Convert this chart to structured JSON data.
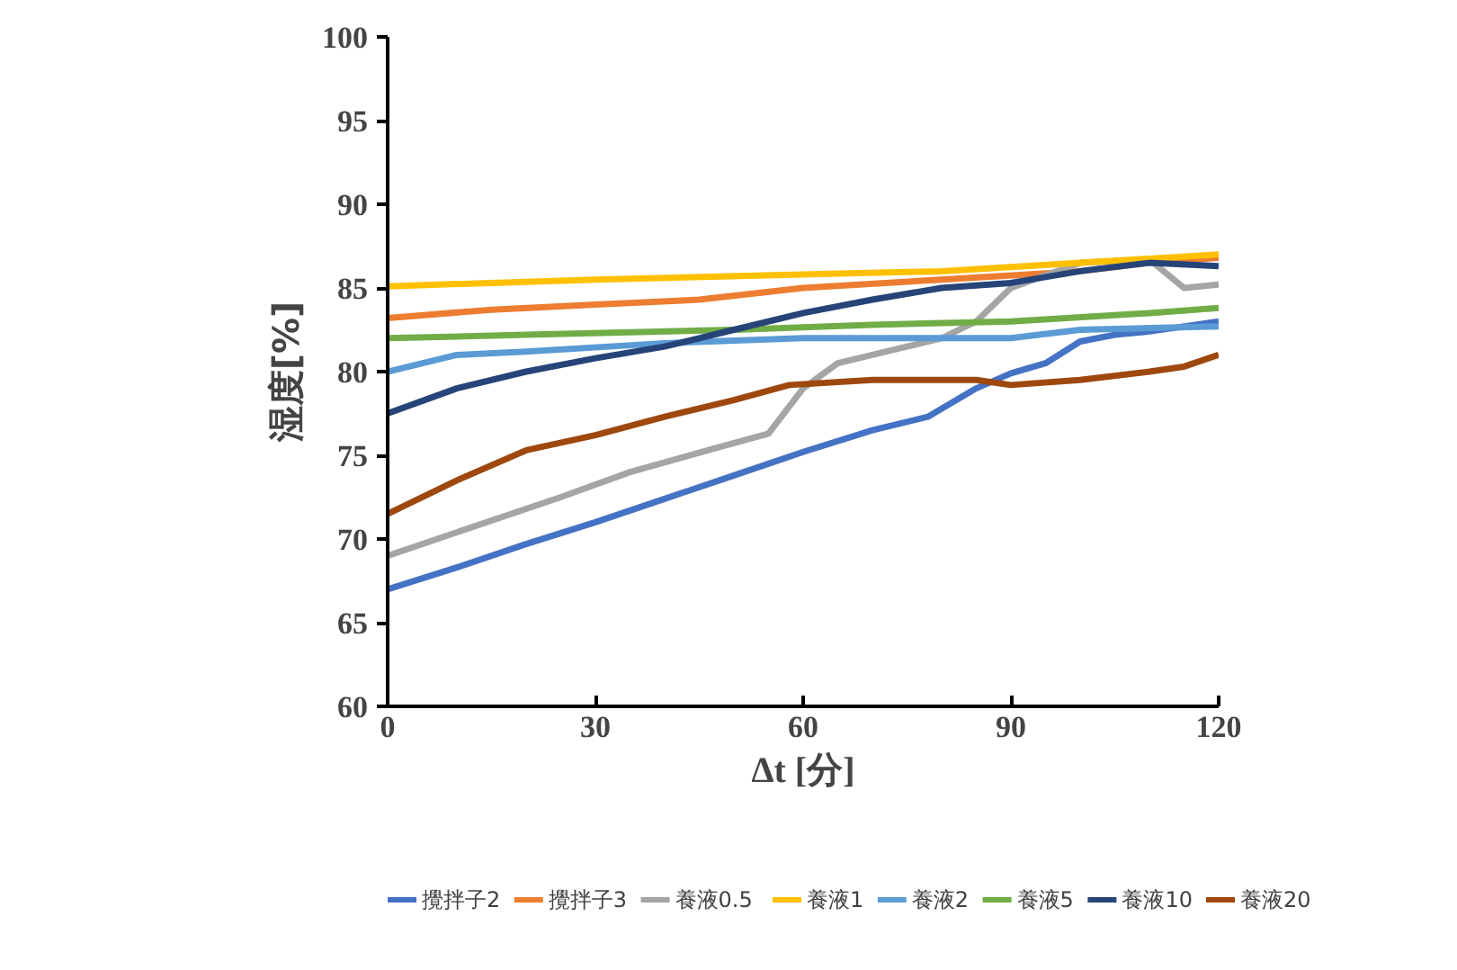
{
  "chart_data": {
    "type": "line",
    "xlabel": "Δt [分]",
    "ylabel": "湿度[%]",
    "xlim": [
      0,
      120
    ],
    "ylim": [
      60,
      100
    ],
    "xticks": [
      0,
      30,
      60,
      90,
      120
    ],
    "yticks": [
      60,
      65,
      70,
      75,
      80,
      85,
      90,
      95,
      100
    ],
    "grid": false,
    "legend": "bottom",
    "marker": "none",
    "line_style": "solid",
    "series": [
      {
        "name": "攪拌子2",
        "color": "#4472c4",
        "x": [
          0,
          10,
          20,
          30,
          40,
          50,
          60,
          70,
          78,
          85,
          90,
          95,
          100,
          105,
          110,
          120
        ],
        "values": [
          67,
          68.3,
          69.7,
          71,
          72.4,
          73.8,
          75.2,
          76.5,
          77.3,
          79,
          79.9,
          80.5,
          81.8,
          82.2,
          82.4,
          83
        ]
      },
      {
        "name": "攪拌子3",
        "color": "#ed7d31",
        "x": [
          0,
          15,
          30,
          45,
          60,
          80,
          100,
          110,
          120
        ],
        "values": [
          83.2,
          83.7,
          84,
          84.3,
          85,
          85.5,
          86,
          86.5,
          86.8
        ]
      },
      {
        "name": "養液0.5",
        "color": "#a5a5a5",
        "x": [
          0,
          25,
          35,
          48,
          55,
          60,
          65,
          75,
          80,
          85,
          90,
          100,
          110,
          115,
          120
        ],
        "values": [
          69,
          72.5,
          74,
          75.5,
          76.3,
          79,
          80.5,
          81.5,
          82,
          83,
          85,
          86.5,
          86.7,
          85,
          85.2
        ]
      },
      {
        "name": "養液1",
        "color": "#ffc000",
        "x": [
          0,
          30,
          60,
          80,
          100,
          120
        ],
        "values": [
          85.1,
          85.5,
          85.8,
          86,
          86.5,
          87
        ]
      },
      {
        "name": "養液2",
        "color": "#5b9bd5",
        "x": [
          0,
          10,
          20,
          40,
          60,
          90,
          100,
          120
        ],
        "values": [
          80,
          81,
          81.2,
          81.7,
          82,
          82,
          82.5,
          82.7
        ]
      },
      {
        "name": "養液5",
        "color": "#70ad47",
        "x": [
          0,
          20,
          50,
          70,
          90,
          110,
          120
        ],
        "values": [
          82,
          82.2,
          82.5,
          82.8,
          83,
          83.5,
          83.8
        ]
      },
      {
        "name": "養液10",
        "color": "#264478",
        "x": [
          0,
          10,
          20,
          30,
          40,
          50,
          60,
          70,
          80,
          90,
          100,
          110,
          120
        ],
        "values": [
          77.5,
          79,
          80,
          80.8,
          81.5,
          82.5,
          83.5,
          84.3,
          85,
          85.3,
          86,
          86.5,
          86.3
        ]
      },
      {
        "name": "養液20",
        "color": "#9e480e",
        "x": [
          0,
          10,
          20,
          30,
          40,
          50,
          58,
          70,
          85,
          90,
          100,
          110,
          115,
          120
        ],
        "values": [
          71.5,
          73.5,
          75.3,
          76.2,
          77.3,
          78.3,
          79.2,
          79.5,
          79.5,
          79.2,
          79.5,
          80,
          80.3,
          81
        ]
      }
    ]
  }
}
